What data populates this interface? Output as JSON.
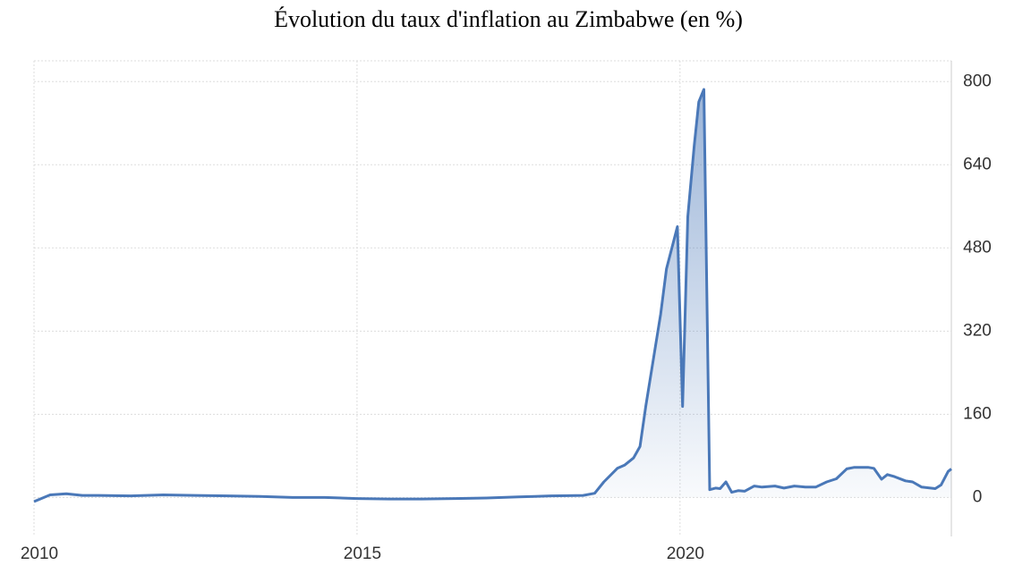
{
  "chart_data": {
    "type": "line",
    "title": "Évolution du taux d'inflation au Zimbabwe (en %)",
    "x": [
      2010.0,
      2010.25,
      2010.5,
      2010.75,
      2011.0,
      2011.5,
      2012.0,
      2012.5,
      2013.0,
      2013.5,
      2014.0,
      2014.5,
      2015.0,
      2015.5,
      2016.0,
      2016.5,
      2017.0,
      2017.5,
      2017.75,
      2018.0,
      2018.5,
      2018.68,
      2018.82,
      2019.03,
      2019.14,
      2019.28,
      2019.38,
      2019.47,
      2019.7,
      2019.79,
      2019.96,
      2020.04,
      2020.12,
      2020.22,
      2020.29,
      2020.37,
      2020.46,
      2020.55,
      2020.62,
      2020.71,
      2020.8,
      2020.9,
      2021.0,
      2021.15,
      2021.27,
      2021.47,
      2021.61,
      2021.77,
      2021.94,
      2022.1,
      2022.27,
      2022.42,
      2022.58,
      2022.7,
      2022.91,
      2023.0,
      2023.12,
      2023.21,
      2023.32,
      2023.49,
      2023.6,
      2023.74,
      2023.95,
      2024.04,
      2024.15,
      2024.2
    ],
    "values": [
      -8,
      5,
      7,
      4,
      4,
      3,
      5,
      4,
      3,
      2,
      0,
      0,
      -2,
      -3,
      -3,
      -2,
      -1,
      1,
      2,
      3,
      4,
      8,
      30,
      56,
      62,
      76,
      98,
      176,
      353,
      440,
      521,
      175,
      540,
      677,
      761,
      785,
      15,
      18,
      17,
      30,
      10,
      13,
      12,
      22,
      20,
      22,
      18,
      22,
      20,
      20,
      30,
      36,
      55,
      58,
      58,
      56,
      35,
      44,
      40,
      32,
      30,
      20,
      17,
      24,
      50,
      55
    ],
    "color": "#4a78b8",
    "xlim": [
      2010,
      2024.2
    ],
    "xticks": [
      2010,
      2015,
      2020
    ],
    "ylim": [
      -75,
      840
    ],
    "yticks": [
      0,
      160,
      320,
      480,
      640,
      800
    ],
    "grid": true
  }
}
